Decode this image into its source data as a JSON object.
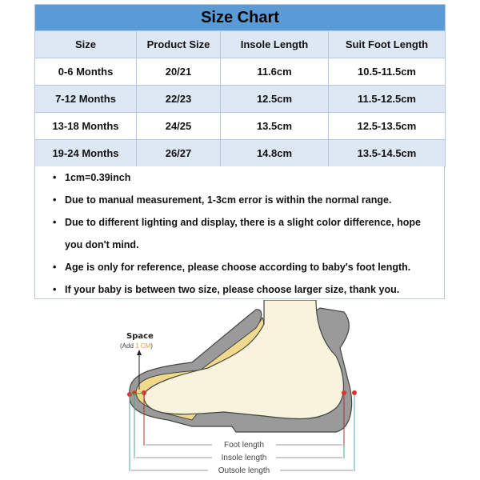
{
  "title": "Size Chart",
  "columns": [
    "Size",
    "Product Size",
    "Insole Length",
    "Suit Foot Length"
  ],
  "rows": [
    [
      "0-6 Months",
      "20/21",
      "11.6cm",
      "10.5-11.5cm"
    ],
    [
      "7-12 Months",
      "22/23",
      "12.5cm",
      "11.5-12.5cm"
    ],
    [
      "13-18 Months",
      "24/25",
      "13.5cm",
      "12.5-13.5cm"
    ],
    [
      "19-24 Months",
      "26/27",
      "14.8cm",
      "13.5-14.5cm"
    ]
  ],
  "notes": [
    "1cm=0.39inch",
    "Due to manual measurement, 1-3cm error is within the normal range.",
    "Due to different lighting and display, there is a slight color difference, hope you don't mind.",
    "Age is only for reference, please choose according to baby's foot length.",
    "If your baby is between two size, please choose larger size, thank you."
  ],
  "diagram": {
    "space_label": "Space",
    "add_prefix": "(Add ",
    "add_value": "1 CM",
    "add_suffix": ")",
    "foot_length": "Foot length",
    "insole_length": "Insole length",
    "outsole_length": "Outsole length"
  },
  "colors": {
    "title_bg": "#5b9bd5",
    "row_alt": "#dde8f4",
    "sole": "#9a9a9a",
    "foot": "#f7f3dc",
    "insole": "#f0d98a"
  }
}
